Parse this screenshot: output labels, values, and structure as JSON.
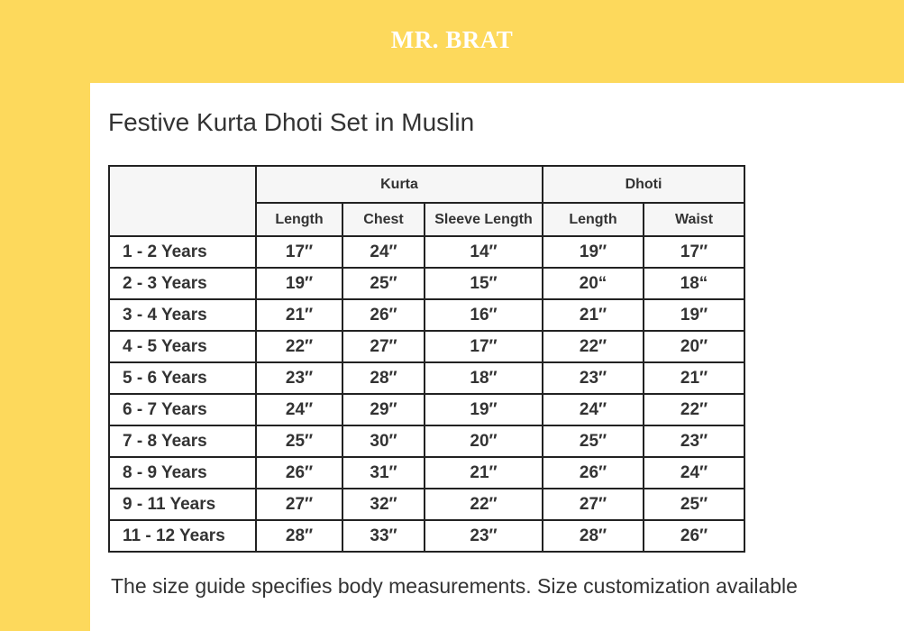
{
  "header": {
    "brand": "MR. BRAT"
  },
  "title": "Festive Kurta Dhoti Set in Muslin",
  "table": {
    "groups": [
      {
        "label": "Kurta",
        "span": 3
      },
      {
        "label": "Dhoti",
        "span": 2
      }
    ],
    "columns": [
      "Length",
      "Chest",
      "Sleeve Length",
      "Length",
      "Waist"
    ],
    "rows": [
      [
        "1 - 2 Years",
        "17″",
        "24″",
        "14″",
        "19″",
        "17″"
      ],
      [
        "2 - 3 Years",
        "19″",
        "25″",
        "15″",
        "20“",
        "18“"
      ],
      [
        "3 - 4 Years",
        "21″",
        "26″",
        "16″",
        "21″",
        "19″"
      ],
      [
        "4 - 5 Years",
        "22″",
        "27″",
        "17″",
        "22″",
        "20″"
      ],
      [
        "5 - 6 Years",
        "23″",
        "28″",
        "18″",
        "23″",
        "21″"
      ],
      [
        "6 - 7 Years",
        "24″",
        "29″",
        "19″",
        "24″",
        "22″"
      ],
      [
        "7 - 8 Years",
        "25″",
        "30″",
        "20″",
        "25″",
        "23″"
      ],
      [
        "8 - 9 Years",
        "26″",
        "31″",
        "21″",
        "26″",
        "24″"
      ],
      [
        "9 - 11 Years",
        "27″",
        "32″",
        "22″",
        "27″",
        "25″"
      ],
      [
        "11 - 12 Years",
        "28″",
        "33″",
        "23″",
        "28″",
        "26″"
      ]
    ]
  },
  "note": "The size guide specifies body measurements. Size customization available"
}
